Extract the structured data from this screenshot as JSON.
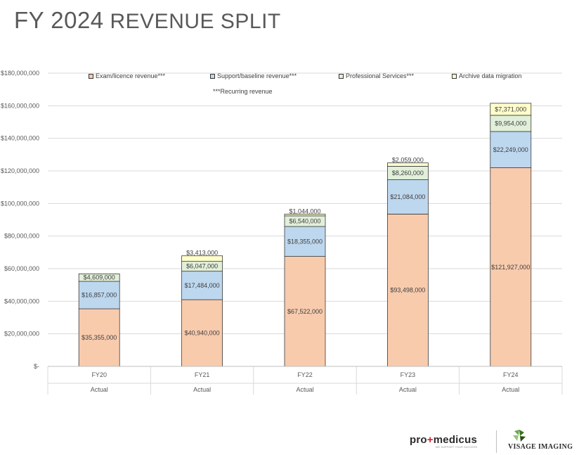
{
  "title": {
    "fy": "FY 2024",
    "rest": "REVENUE SPLIT"
  },
  "chart_data": {
    "type": "bar",
    "stacked": true,
    "categories": [
      "FY20",
      "FY21",
      "FY22",
      "FY23",
      "FY24"
    ],
    "category_sublabels": [
      "Actual",
      "Actual",
      "Actual",
      "Actual",
      "Actual"
    ],
    "series": [
      {
        "name": "Exam/licence revenue***",
        "color": "#f8cbad",
        "values": [
          35355000,
          40940000,
          67522000,
          93498000,
          121927000
        ],
        "labels": [
          "$35,355,000",
          "$40,940,000",
          "$67,522,000",
          "$93,498,000",
          "$121,927,000"
        ]
      },
      {
        "name": "Support/baseline revenue***",
        "color": "#bdd7ee",
        "values": [
          16857000,
          17484000,
          18355000,
          21084000,
          22249000
        ],
        "labels": [
          "$16,857,000",
          "$17,484,000",
          "$18,355,000",
          "$21,084,000",
          "$22,249,000"
        ]
      },
      {
        "name": "Professional Services***",
        "color": "#e2efd9",
        "values": [
          4609000,
          6047000,
          6540000,
          8260000,
          9954000
        ],
        "labels": [
          "$4,609,000",
          "$6,047,000",
          "$6,540,000",
          "$8,260,000",
          "$9,954,000"
        ]
      },
      {
        "name": "Archive data migration",
        "color": "#ffffcc",
        "values": [
          0,
          3413000,
          1044000,
          2059000,
          7371000
        ],
        "labels": [
          "",
          "$3,413,000",
          "$1,044,000",
          "$2,059,000",
          "$7,371,000"
        ]
      }
    ],
    "legend_note": "***Recurring revenue",
    "legend_position": "top",
    "ylim": [
      0,
      180000000
    ],
    "yticks": [
      0,
      20000000,
      40000000,
      60000000,
      80000000,
      100000000,
      120000000,
      140000000,
      160000000,
      180000000
    ],
    "ytick_labels": [
      "$-",
      "$20,000,000",
      "$40,000,000",
      "$60,000,000",
      "$80,000,000",
      "$100,000,000",
      "$120,000,000",
      "$140,000,000",
      "$160,000,000",
      "$180,000,000"
    ],
    "grid": true,
    "xlabel": "",
    "ylabel": ""
  },
  "footer": {
    "promedicus": {
      "pre": "pro",
      "plus": "+",
      "post": "medicus",
      "tagline": "WE SUPPORT  YOUR SUCCESS"
    },
    "visage": "VISAGE IMAGING"
  }
}
